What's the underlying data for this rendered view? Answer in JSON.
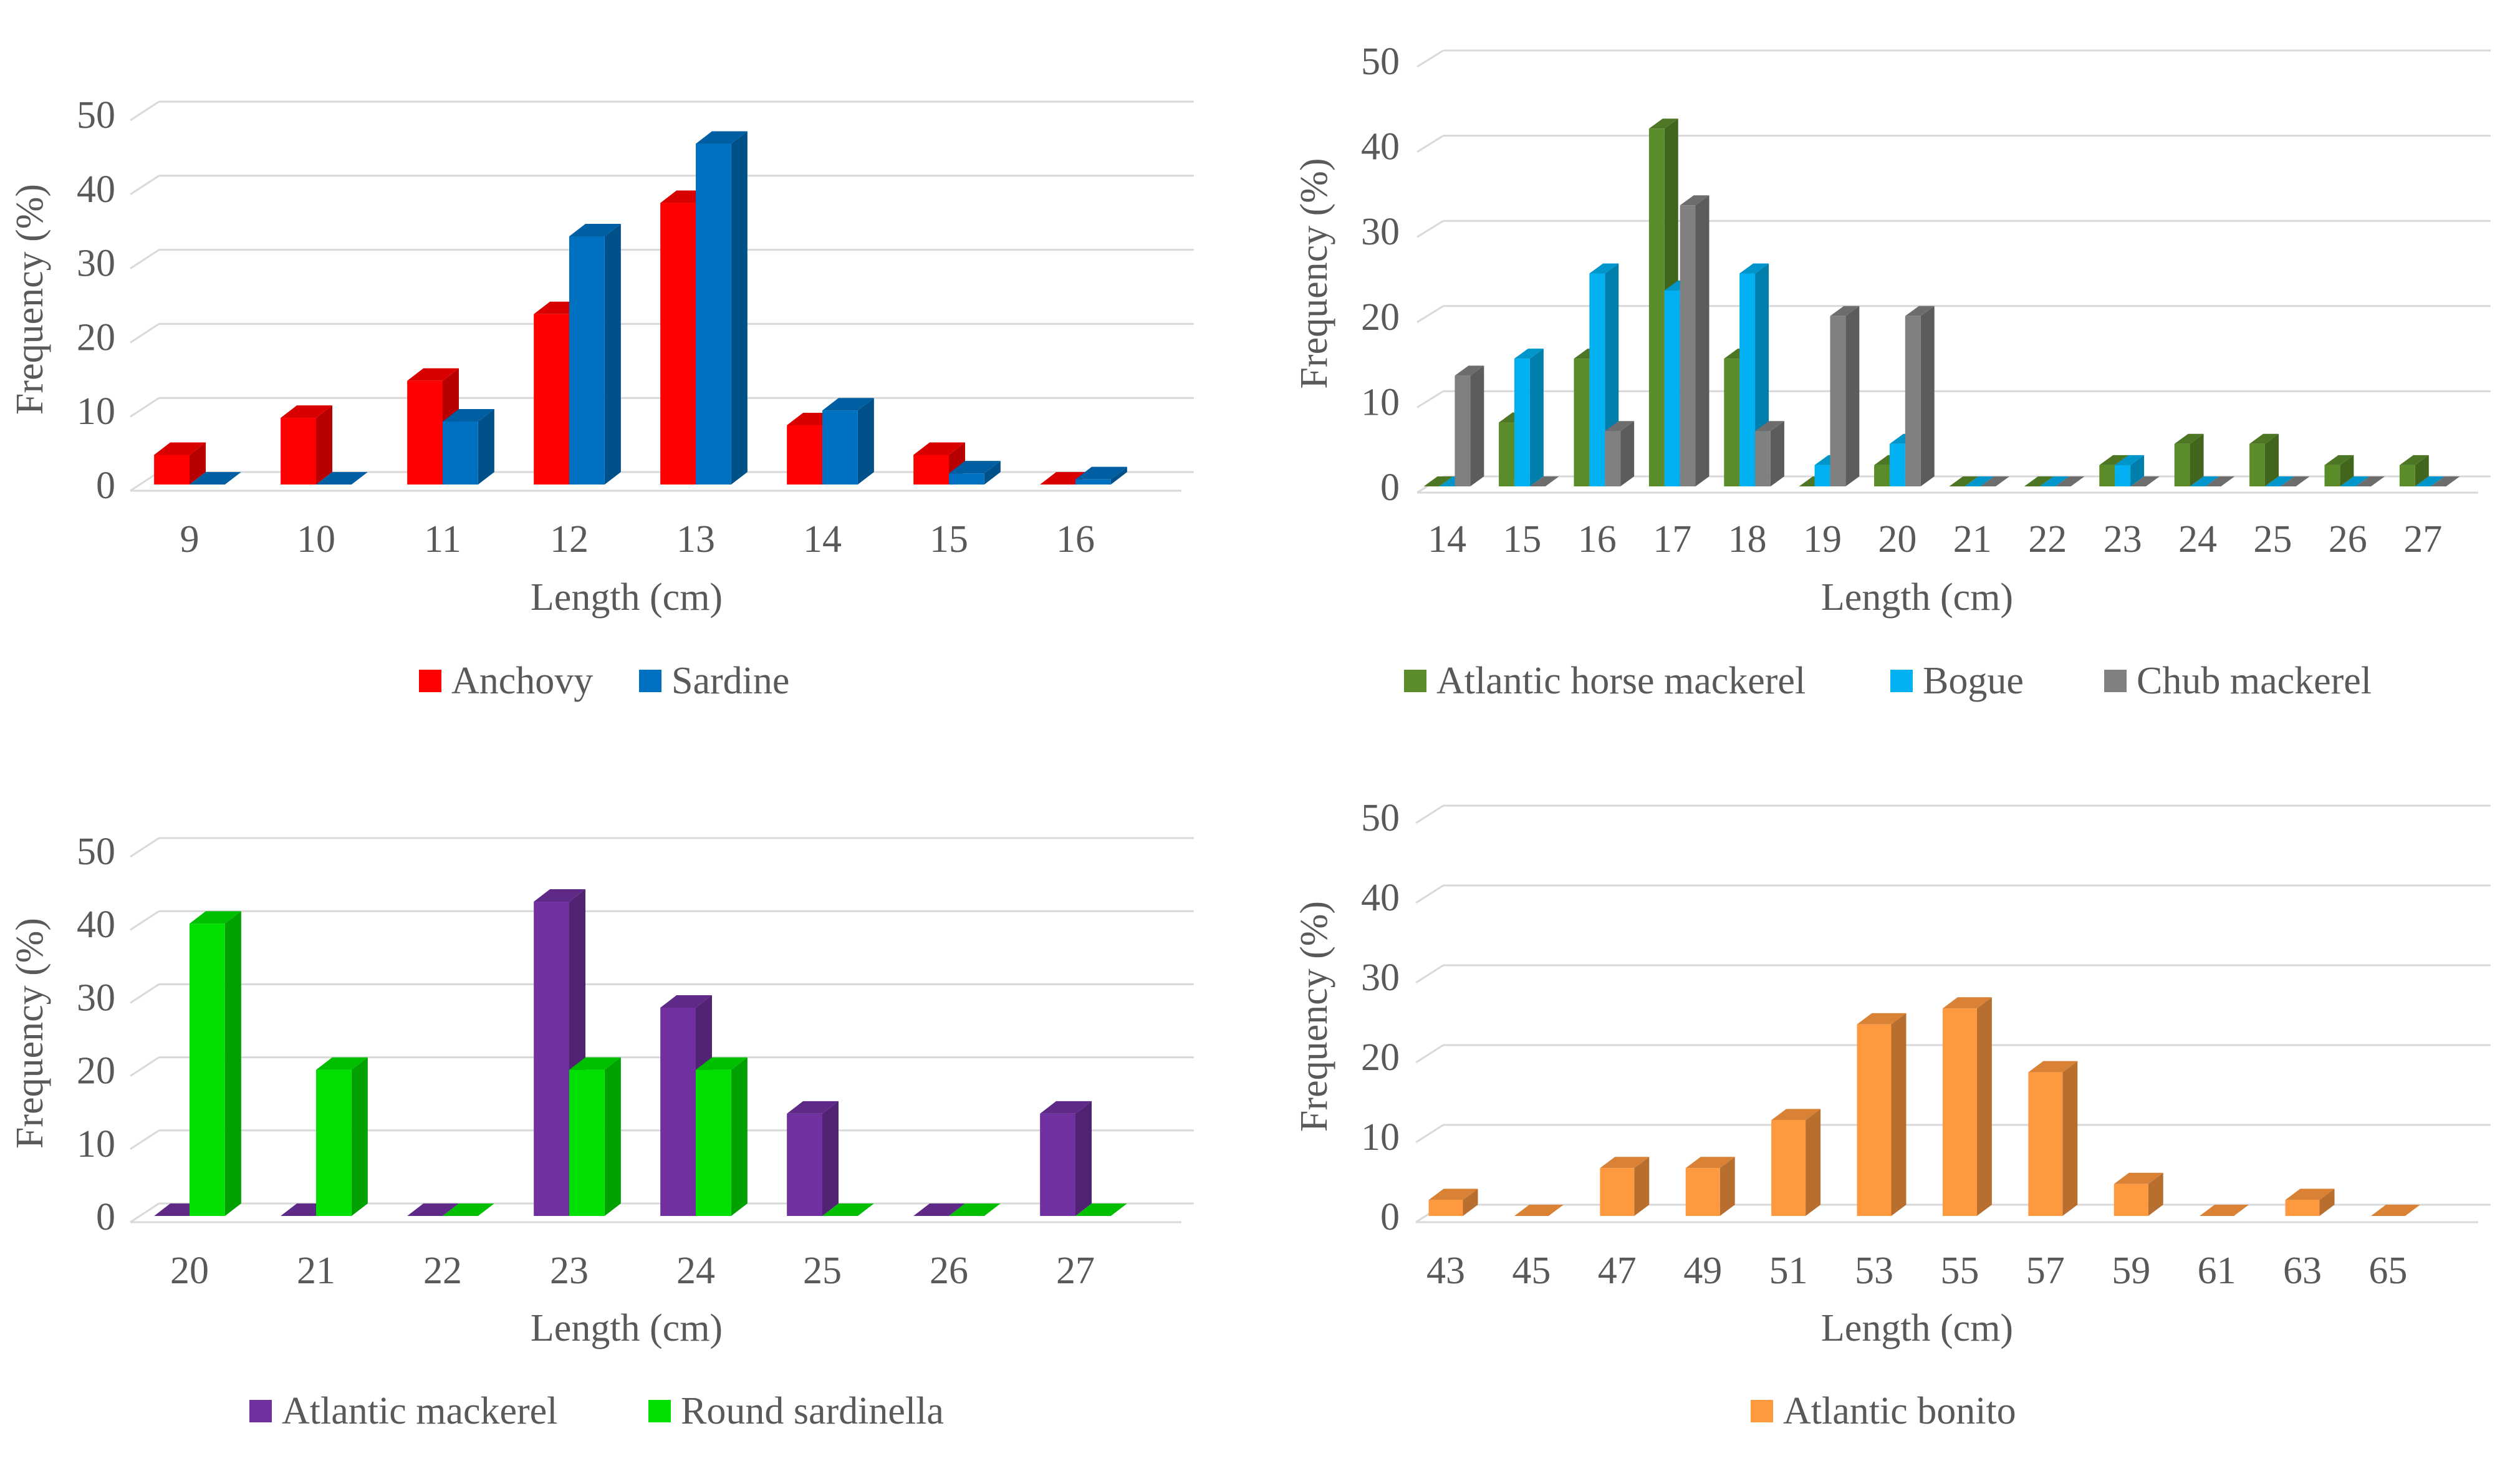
{
  "colors": {
    "grid": "#d9d9d9",
    "axis_text": "#595959",
    "anchovy": "#ff0000",
    "sardine": "#0070c0",
    "horse_mackerel": "#5b8c2a",
    "bogue": "#00b0f0",
    "chub_mackerel": "#808080",
    "atlantic_mackerel": "#7030a0",
    "round_sardinella": "#00e000",
    "bonito": "#ff9940"
  },
  "chart_data": [
    {
      "type": "bar",
      "title": "",
      "xlabel": "Length (cm)",
      "ylabel": "Frequency (%)",
      "ylim": [
        0,
        50
      ],
      "yticks": [
        "0",
        "10",
        "20",
        "30",
        "40",
        "50"
      ],
      "categories": [
        "9",
        "10",
        "11",
        "12",
        "13",
        "14",
        "15",
        "16"
      ],
      "series": [
        {
          "name": "Anchovy",
          "color": "#ff0000",
          "values": [
            4,
            9,
            14,
            23,
            38,
            8,
            4,
            0
          ]
        },
        {
          "name": "Sardine",
          "color": "#0070c0",
          "values": [
            0,
            0,
            8.5,
            33.5,
            46,
            10,
            1.5,
            0.7
          ]
        }
      ],
      "legend_position": "bottom"
    },
    {
      "type": "bar",
      "title": "",
      "xlabel": "Length (cm)",
      "ylabel": "Frequency (%)",
      "ylim": [
        0,
        50
      ],
      "yticks": [
        "0",
        "10",
        "20",
        "30",
        "40",
        "50"
      ],
      "categories": [
        "14",
        "15",
        "16",
        "17",
        "18",
        "19",
        "20",
        "21",
        "22",
        "23",
        "24",
        "25",
        "26",
        "27"
      ],
      "series": [
        {
          "name": "Atlantic horse mackerel",
          "color": "#5b8c2a",
          "values": [
            0,
            7.5,
            15,
            42,
            15,
            0,
            2.5,
            0,
            0,
            2.5,
            5,
            5,
            2.5,
            2.5
          ]
        },
        {
          "name": "Bogue",
          "color": "#00b0f0",
          "values": [
            0,
            15,
            25,
            23,
            25,
            2.5,
            5,
            0,
            0,
            2.5,
            0,
            0,
            0,
            0
          ]
        },
        {
          "name": "Chub mackerel",
          "color": "#808080",
          "values": [
            13,
            0,
            6.5,
            33,
            6.5,
            20,
            20,
            0,
            0,
            0,
            0,
            0,
            0,
            0
          ]
        }
      ],
      "legend_position": "bottom"
    },
    {
      "type": "bar",
      "title": "",
      "xlabel": "Length (cm)",
      "ylabel": "Frequency (%)",
      "ylim": [
        0,
        50
      ],
      "yticks": [
        "0",
        "10",
        "20",
        "30",
        "40",
        "50"
      ],
      "categories": [
        "20",
        "21",
        "22",
        "23",
        "24",
        "25",
        "26",
        "27"
      ],
      "series": [
        {
          "name": "Atlantic mackerel",
          "color": "#7030a0",
          "values": [
            0,
            0,
            0,
            43,
            28.5,
            14,
            0,
            14
          ]
        },
        {
          "name": "Round sardinella",
          "color": "#00e000",
          "values": [
            40,
            20,
            0,
            20,
            20,
            0,
            0,
            0
          ]
        }
      ],
      "legend_position": "bottom"
    },
    {
      "type": "bar",
      "title": "",
      "xlabel": "Length (cm)",
      "ylabel": "Frequency (%)",
      "ylim": [
        0,
        50
      ],
      "yticks": [
        "0",
        "10",
        "20",
        "30",
        "40",
        "50"
      ],
      "categories": [
        "43",
        "45",
        "47",
        "49",
        "51",
        "53",
        "55",
        "57",
        "59",
        "61",
        "63",
        "65"
      ],
      "series": [
        {
          "name": "Atlantic bonito",
          "color": "#ff9940",
          "values": [
            2,
            0,
            6,
            6,
            12,
            24,
            26,
            18,
            4,
            0,
            2,
            0
          ]
        }
      ],
      "legend_position": "bottom"
    }
  ]
}
